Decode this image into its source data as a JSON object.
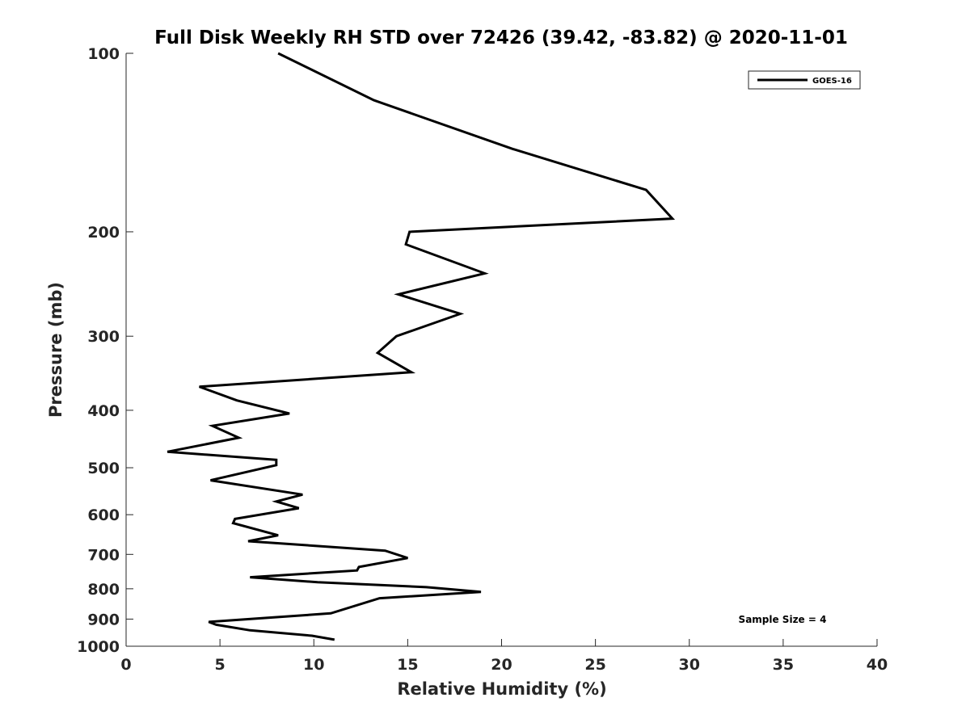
{
  "chart_data": {
    "type": "line",
    "title": "Full Disk Weekly RH STD over 72426 (39.42, -83.82) @ 2020-11-01",
    "xlabel": "Relative Humidity (%)",
    "ylabel": "Pressure (mb)",
    "xlim": [
      0,
      40
    ],
    "ylim": [
      1000,
      100
    ],
    "yscale": "log",
    "y_reversed": true,
    "x_ticks": [
      0,
      5,
      10,
      15,
      20,
      25,
      30,
      35,
      40
    ],
    "y_ticks": [
      100,
      200,
      300,
      400,
      500,
      600,
      700,
      800,
      900,
      1000
    ],
    "grid": false,
    "legend": {
      "position": "top-right"
    },
    "annotation": "Sample Size = 4",
    "colors": {
      "series": "#000000",
      "axis": "#262626",
      "background": "#ffffff"
    },
    "series": [
      {
        "name": "GOES-16",
        "x": [
          8.1,
          13.2,
          20.6,
          27.7,
          29.1,
          15.1,
          14.9,
          19.1,
          14.5,
          17.8,
          14.4,
          13.4,
          15.2,
          3.9,
          5.9,
          8.7,
          4.6,
          6.0,
          2.2,
          8.0,
          8.0,
          4.5,
          9.4,
          8.0,
          9.2,
          5.8,
          5.7,
          8.1,
          6.5,
          13.8,
          15.0,
          12.4,
          12.3,
          6.6,
          10.2,
          16.0,
          18.9,
          13.5,
          10.9,
          4.4,
          4.8,
          6.6,
          9.9,
          11.1
        ],
        "y": [
          100,
          120,
          145,
          170,
          190,
          200,
          210,
          235,
          255,
          275,
          300,
          320,
          345,
          365,
          385,
          405,
          425,
          445,
          470,
          485,
          495,
          525,
          555,
          570,
          585,
          610,
          620,
          650,
          665,
          690,
          710,
          735,
          745,
          765,
          780,
          795,
          810,
          830,
          880,
          910,
          920,
          940,
          960,
          975
        ]
      }
    ]
  }
}
